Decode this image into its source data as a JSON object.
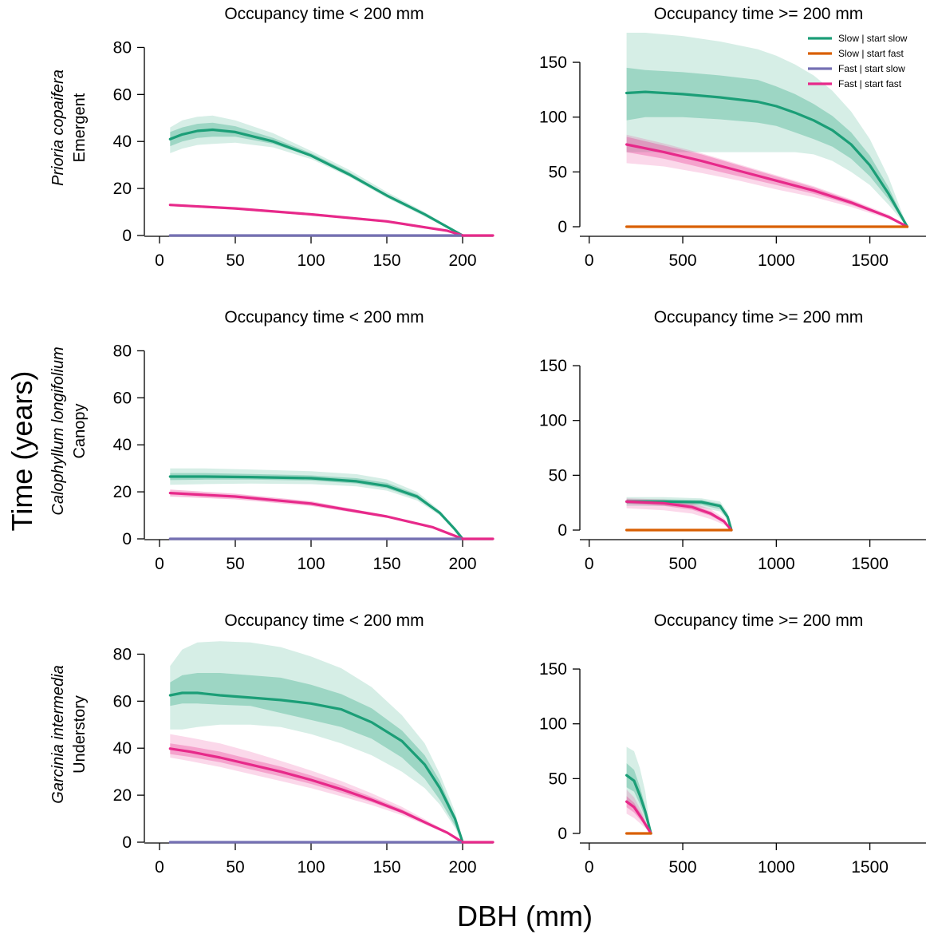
{
  "figure": {
    "ylabel": "Time (years)",
    "xlabel": "DBH (mm)"
  },
  "colors": {
    "slow_start_slow": "#1b9e77",
    "slow_start_fast": "#d95f02",
    "fast_start_slow": "#7570b3",
    "fast_start_fast": "#e7298a"
  },
  "legend": {
    "placement": "top-right of top-right panel",
    "items": [
      {
        "label": "Slow | start slow",
        "series": "slow_start_slow"
      },
      {
        "label": "Slow | start fast",
        "series": "slow_start_fast"
      },
      {
        "label": "Fast | start slow",
        "series": "fast_start_slow"
      },
      {
        "label": "Fast | start fast",
        "series": "fast_start_fast"
      }
    ]
  },
  "rows": [
    {
      "species": "Prioria copaifera",
      "stratum": "Emergent"
    },
    {
      "species": "Calophyllum longifolium",
      "stratum": "Canopy"
    },
    {
      "species": "Garcinia intermedia",
      "stratum": "Understory"
    }
  ],
  "chart_data": [
    {
      "type": "line",
      "row": 0,
      "col": 0,
      "title": "Occupancy time < 200 mm",
      "xlim": [
        -10,
        220
      ],
      "ylim": [
        0,
        90
      ],
      "xticks": [
        0,
        50,
        100,
        150,
        200
      ],
      "yticks": [
        0,
        20,
        40,
        60,
        80
      ],
      "series": [
        {
          "key": "slow_start_slow",
          "x": [
            7,
            15,
            25,
            35,
            50,
            75,
            100,
            125,
            150,
            175,
            200
          ],
          "y": [
            41,
            43,
            44.5,
            45,
            44,
            40,
            34,
            26,
            17,
            9,
            0
          ],
          "band_inner": {
            "lo": [
              38,
              40,
              41.5,
              42,
              42,
              39,
              33.5,
              25.5,
              16.5,
              8.5,
              0
            ],
            "hi": [
              44,
              46,
              47.5,
              48,
              46.5,
              41.5,
              35,
              27,
              17.5,
              9.5,
              0
            ]
          },
          "band_outer": {
            "lo": [
              35,
              37,
              38.5,
              39,
              39.5,
              37.5,
              32.5,
              25,
              16,
              8,
              0
            ],
            "hi": [
              46,
              49,
              50.5,
              51,
              49,
              43.5,
              36,
              28,
              18.5,
              10,
              0
            ]
          }
        },
        {
          "key": "fast_start_fast",
          "x": [
            7,
            50,
            100,
            150,
            180,
            190,
            200
          ],
          "y": [
            13,
            11.5,
            9,
            6,
            3,
            2,
            0
          ],
          "band_inner": {
            "lo": [
              12.5,
              11,
              8.5,
              5.5,
              2.5,
              1.5,
              0
            ],
            "hi": [
              13.5,
              12,
              9.5,
              6.5,
              3.5,
              2.5,
              0
            ]
          }
        },
        {
          "key": "fast_start_slow",
          "x": [
            7,
            200
          ],
          "y": [
            0,
            0
          ]
        },
        {
          "key": "tail",
          "x": [
            200,
            220
          ],
          "y": [
            0,
            0
          ]
        }
      ]
    },
    {
      "type": "line",
      "row": 0,
      "col": 1,
      "title": "Occupancy time >= 200 mm",
      "xlim": [
        -50,
        1800
      ],
      "ylim": [
        -8,
        185
      ],
      "xticks": [
        0,
        500,
        1000,
        1500
      ],
      "yticks": [
        0,
        50,
        100,
        150
      ],
      "series": [
        {
          "key": "slow_start_slow",
          "x": [
            200,
            300,
            500,
            700,
            900,
            1000,
            1100,
            1200,
            1300,
            1400,
            1500,
            1600,
            1700
          ],
          "y": [
            122,
            123,
            121,
            118,
            114,
            110,
            104,
            97,
            88,
            75,
            56,
            30,
            0
          ],
          "band_inner": {
            "lo": [
              97,
              100,
              100,
              98,
              95,
              92,
              86,
              80,
              73,
              62,
              46,
              25,
              0
            ],
            "hi": [
              145,
              143,
              141,
              138,
              134,
              128,
              121,
              112,
              101,
              86,
              65,
              36,
              0
            ]
          },
          "band_outer": {
            "lo": [
              68,
              68,
              68,
              68,
              68,
              68,
              68,
              66,
              60,
              50,
              38,
              20,
              0
            ],
            "hi": [
              177,
              177,
              174,
              169,
              162,
              156,
              148,
              138,
              124,
              105,
              80,
              45,
              0
            ]
          }
        },
        {
          "key": "fast_start_fast",
          "x": [
            200,
            400,
            600,
            800,
            1000,
            1200,
            1400,
            1600,
            1700
          ],
          "y": [
            75,
            68,
            60,
            51,
            42,
            33,
            22,
            9,
            0
          ],
          "band_inner": {
            "lo": [
              68,
              62,
              54,
              46,
              38,
              30,
              20,
              8,
              0
            ],
            "hi": [
              82,
              74,
              66,
              56,
              46,
              36,
              24,
              10,
              0
            ]
          },
          "band_outer": {
            "lo": [
              58,
              55,
              49,
              42,
              34,
              27,
              18,
              7,
              0
            ],
            "hi": [
              84,
              76,
              67,
              57,
              47,
              37,
              25,
              11,
              0
            ]
          }
        },
        {
          "key": "slow_start_fast",
          "x": [
            200,
            1700
          ],
          "y": [
            0,
            0
          ]
        }
      ]
    },
    {
      "type": "line",
      "row": 1,
      "col": 0,
      "title": "Occupancy time < 200 mm",
      "xlim": [
        -10,
        220
      ],
      "ylim": [
        0,
        90
      ],
      "xticks": [
        0,
        50,
        100,
        150,
        200
      ],
      "yticks": [
        0,
        20,
        40,
        60,
        80
      ],
      "series": [
        {
          "key": "slow_start_slow",
          "x": [
            7,
            30,
            60,
            100,
            130,
            150,
            170,
            185,
            195,
            200
          ],
          "y": [
            26.5,
            26.5,
            26.3,
            25.8,
            24.5,
            22.5,
            18,
            11,
            4,
            0
          ],
          "band_inner": {
            "lo": [
              25,
              25.2,
              25.2,
              24.8,
              23.5,
              21.5,
              17,
              10.5,
              3.5,
              0
            ],
            "hi": [
              28,
              28,
              27.6,
              27,
              25.8,
              23.8,
              19,
              11.5,
              4.5,
              0
            ]
          },
          "band_outer": {
            "lo": [
              23,
              23.3,
              23.5,
              23.3,
              22.3,
              20.5,
              16.3,
              10,
              3.5,
              0
            ],
            "hi": [
              30,
              30,
              29.5,
              28.8,
              27.5,
              25.3,
              20,
              12,
              4.5,
              0
            ]
          }
        },
        {
          "key": "fast_start_fast",
          "x": [
            7,
            50,
            100,
            150,
            180,
            200
          ],
          "y": [
            19.5,
            18,
            15,
            9.5,
            5,
            0
          ],
          "band_inner": {
            "lo": [
              18,
              16.8,
              14,
              9,
              4.6,
              0
            ],
            "hi": [
              21,
              19.2,
              16,
              10,
              5.4,
              0
            ]
          }
        },
        {
          "key": "fast_start_slow",
          "x": [
            7,
            200
          ],
          "y": [
            0,
            0
          ]
        },
        {
          "key": "tail",
          "x": [
            200,
            220
          ],
          "y": [
            0,
            0
          ]
        }
      ]
    },
    {
      "type": "line",
      "row": 1,
      "col": 1,
      "title": "Occupancy time >= 200 mm",
      "xlim": [
        -50,
        1800
      ],
      "ylim": [
        -8,
        185
      ],
      "xticks": [
        0,
        500,
        1000,
        1500
      ],
      "yticks": [
        0,
        50,
        100,
        150
      ],
      "series": [
        {
          "key": "slow_start_slow",
          "x": [
            200,
            400,
            600,
            700,
            740,
            760
          ],
          "y": [
            26,
            26,
            25.5,
            22,
            12,
            0
          ],
          "band_inner": {
            "lo": [
              24,
              24,
              23,
              19,
              10,
              0
            ],
            "hi": [
              28,
              28,
              27.5,
              24,
              14,
              0
            ]
          },
          "band_outer": {
            "lo": [
              22,
              22,
              20.5,
              17,
              9,
              0
            ],
            "hi": [
              30,
              30,
              29,
              26,
              16,
              0
            ]
          }
        },
        {
          "key": "fast_start_fast",
          "x": [
            200,
            400,
            550,
            650,
            720,
            760
          ],
          "y": [
            26,
            24.5,
            21,
            15,
            8,
            0
          ],
          "band_inner": {
            "lo": [
              24,
              22,
              18.5,
              13,
              6.5,
              0
            ],
            "hi": [
              28,
              26.5,
              23,
              17,
              9,
              0
            ]
          },
          "band_outer": {
            "lo": [
              20,
              18,
              15,
              10,
              5,
              0
            ],
            "hi": [
              29,
              28,
              25,
              19,
              11,
              0
            ]
          }
        },
        {
          "key": "slow_start_fast",
          "x": [
            200,
            760
          ],
          "y": [
            0,
            0
          ]
        }
      ]
    },
    {
      "type": "line",
      "row": 2,
      "col": 0,
      "title": "Occupancy time < 200 mm",
      "xlim": [
        -10,
        220
      ],
      "ylim": [
        0,
        90
      ],
      "xticks": [
        0,
        50,
        100,
        150,
        200
      ],
      "yticks": [
        0,
        20,
        40,
        60,
        80
      ],
      "series": [
        {
          "key": "slow_start_slow",
          "x": [
            7,
            15,
            25,
            40,
            60,
            80,
            100,
            120,
            140,
            160,
            175,
            185,
            195,
            200
          ],
          "y": [
            62.5,
            63.5,
            63.5,
            62.5,
            61.5,
            60.5,
            59,
            56.5,
            51,
            43,
            33,
            23,
            10,
            0
          ],
          "band_inner": {
            "lo": [
              58,
              59,
              59,
              58.5,
              58,
              55,
              52,
              49,
              44,
              36,
              27,
              18,
              7,
              0
            ],
            "hi": [
              68,
              71,
              72,
              72,
              71,
              70,
              67,
              63,
              57,
              47.5,
              37,
              26,
              11,
              0
            ]
          },
          "band_outer": {
            "lo": [
              48,
              48,
              49,
              50,
              50,
              49,
              46,
              42,
              37,
              30,
              23,
              16,
              6,
              0
            ],
            "hi": [
              75,
              82,
              85,
              85.5,
              85,
              83,
              79,
              74,
              66,
              54,
              42,
              29,
              13,
              0
            ]
          }
        },
        {
          "key": "fast_start_fast",
          "x": [
            7,
            20,
            40,
            60,
            80,
            100,
            120,
            140,
            160,
            180,
            190,
            200
          ],
          "y": [
            39.8,
            38.5,
            36,
            33,
            30,
            26.5,
            22.5,
            18,
            13,
            7,
            4,
            0
          ],
          "band_inner": {
            "lo": [
              37.5,
              36.3,
              34,
              31,
              28,
              24.8,
              21,
              17,
              12.3,
              6.6,
              3.7,
              0
            ],
            "hi": [
              42,
              40.8,
              38.5,
              35.3,
              32.2,
              28.4,
              24.2,
              19.3,
              14,
              7.5,
              4.3,
              0
            ]
          },
          "band_outer": {
            "lo": [
              36,
              34.5,
              32,
              29,
              26,
              23,
              19.5,
              15.8,
              11.5,
              6.2,
              3.5,
              0
            ],
            "hi": [
              46,
              44.5,
              42,
              38.5,
              34.6,
              30.5,
              26,
              20.8,
              15,
              8,
              4.5,
              0
            ]
          }
        },
        {
          "key": "fast_start_slow",
          "x": [
            7,
            200
          ],
          "y": [
            0,
            0
          ]
        },
        {
          "key": "tail",
          "x": [
            200,
            220
          ],
          "y": [
            0,
            0
          ]
        }
      ]
    },
    {
      "type": "line",
      "row": 2,
      "col": 1,
      "title": "Occupancy time >= 200 mm",
      "xlim": [
        -50,
        1800
      ],
      "ylim": [
        -8,
        185
      ],
      "xticks": [
        0,
        500,
        1000,
        1500
      ],
      "yticks": [
        0,
        50,
        100,
        150
      ],
      "series": [
        {
          "key": "slow_start_slow",
          "x": [
            200,
            240,
            270,
            300,
            330
          ],
          "y": [
            53,
            48,
            35,
            20,
            0
          ],
          "band_inner": {
            "lo": [
              42,
              38,
              27,
              14,
              0
            ],
            "hi": [
              64,
              58,
              43,
              25,
              0
            ]
          },
          "band_outer": {
            "lo": [
              28,
              25,
              18,
              9,
              0
            ],
            "hi": [
              79,
              75,
              60,
              38,
              0
            ]
          }
        },
        {
          "key": "fast_start_fast",
          "x": [
            200,
            240,
            280,
            330
          ],
          "y": [
            29,
            24,
            14,
            0
          ],
          "band_inner": {
            "lo": [
              24,
              19,
              11,
              0
            ],
            "hi": [
              34,
              28,
              17,
              0
            ]
          },
          "band_outer": {
            "lo": [
              18,
              14,
              8,
              0
            ],
            "hi": [
              40,
              33,
              20,
              0
            ]
          }
        },
        {
          "key": "slow_start_fast",
          "x": [
            200,
            330
          ],
          "y": [
            0,
            0
          ]
        }
      ]
    }
  ]
}
